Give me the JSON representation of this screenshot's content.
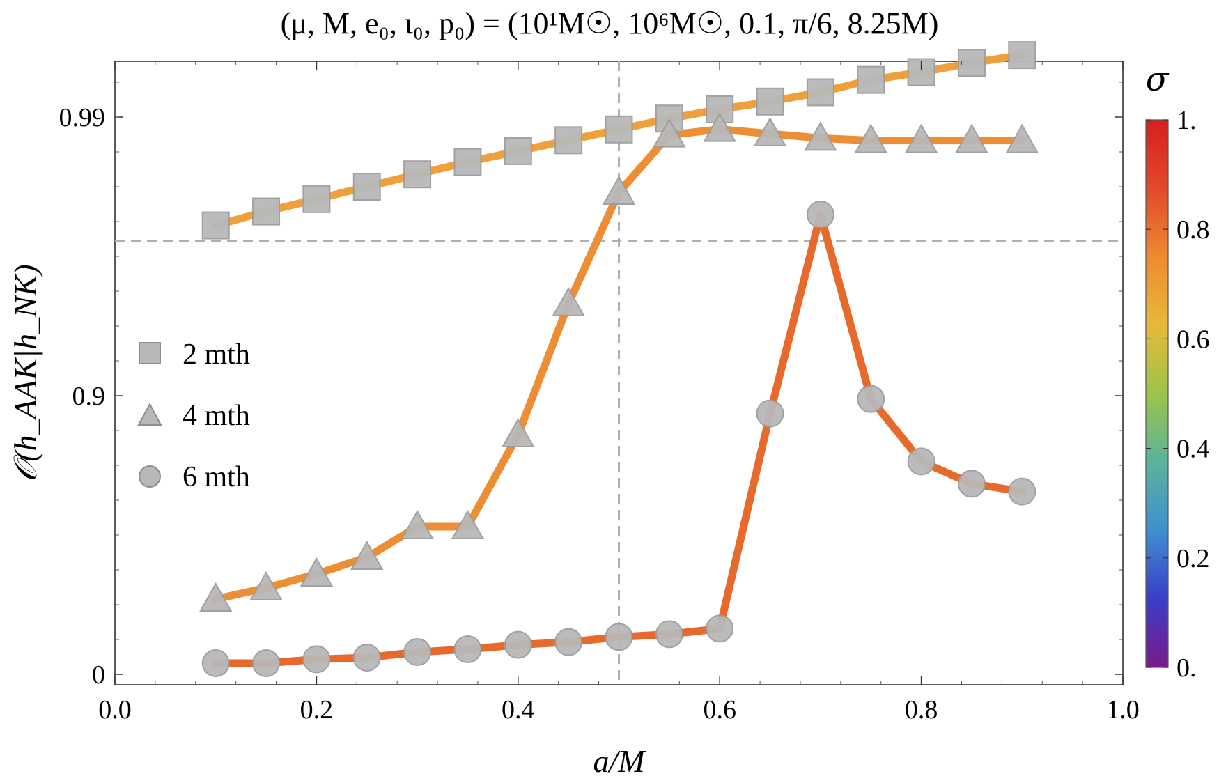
{
  "chart_data": {
    "type": "line",
    "title": "(μ, M, e₀, ι₀, p₀) = (10¹M☉, 10⁶M☉, 0.1, π/6, 8.25M)",
    "xlabel": "a/M",
    "ylabel": "𝒪(h_AAK|h_NK)",
    "xlim": [
      0.0,
      1.0
    ],
    "x_ticks": [
      "0.0",
      "0.2",
      "0.4",
      "0.6",
      "0.8",
      "1.0"
    ],
    "y_ticks": [
      "0",
      "0.9",
      "0.99"
    ],
    "y_scale": "stretched",
    "y_axis_map": [
      [
        0,
        0.0
      ],
      [
        0.9,
        0.5
      ],
      [
        0.99,
        1.0
      ]
    ],
    "ref_lines": {
      "vertical_x": 0.5,
      "horizontal_y": 0.95
    },
    "legend": [
      {
        "label": "2 mth",
        "marker": "square"
      },
      {
        "label": "4 mth",
        "marker": "triangle"
      },
      {
        "label": "6 mth",
        "marker": "circle"
      }
    ],
    "colorbar": {
      "title": "σ",
      "ticks": [
        "0.",
        "0.2",
        "0.4",
        "0.6",
        "0.8",
        "1."
      ],
      "colors": [
        "#7b1a8a",
        "#3a3ec8",
        "#3f8fd0",
        "#5bb39a",
        "#9cc44a",
        "#e8b83a",
        "#ee8a30",
        "#e04a2a",
        "#d81e1e"
      ]
    },
    "x": [
      0.1,
      0.15,
      0.2,
      0.25,
      0.3,
      0.35,
      0.4,
      0.45,
      0.5,
      0.55,
      0.6,
      0.65,
      0.7,
      0.75,
      0.8,
      0.85,
      0.9
    ],
    "series": [
      {
        "name": "2 mth",
        "marker": "square",
        "line_color": "#efa03a",
        "values": [
          0.955,
          0.9595,
          0.9635,
          0.9675,
          0.9715,
          0.9755,
          0.979,
          0.9825,
          0.986,
          0.9895,
          0.9925,
          0.995,
          0.998,
          1.002,
          1.0045,
          1.0075,
          1.01
        ]
      },
      {
        "name": "4 mth",
        "marker": "triangle",
        "line_color": "#ed8e34",
        "values": 0
      },
      {
        "name": "6 mth",
        "marker": "circle",
        "line_color": "#e8692c",
        "values": 0
      }
    ],
    "series_values_axis_units": {
      "4 mth": [
        0.135,
        0.155,
        0.18,
        0.21,
        0.265,
        0.265,
        0.43,
        0.665,
        0.865,
        0.968,
        0.978,
        0.97,
        0.962,
        0.958,
        0.958,
        0.958,
        0.958
      ],
      "6 mth": [
        0.02,
        0.02,
        0.027,
        0.03,
        0.04,
        0.045,
        0.053,
        0.058,
        0.067,
        0.072,
        0.082,
        0.468,
        0.825,
        0.494,
        0.382,
        0.342,
        0.328
      ]
    }
  }
}
